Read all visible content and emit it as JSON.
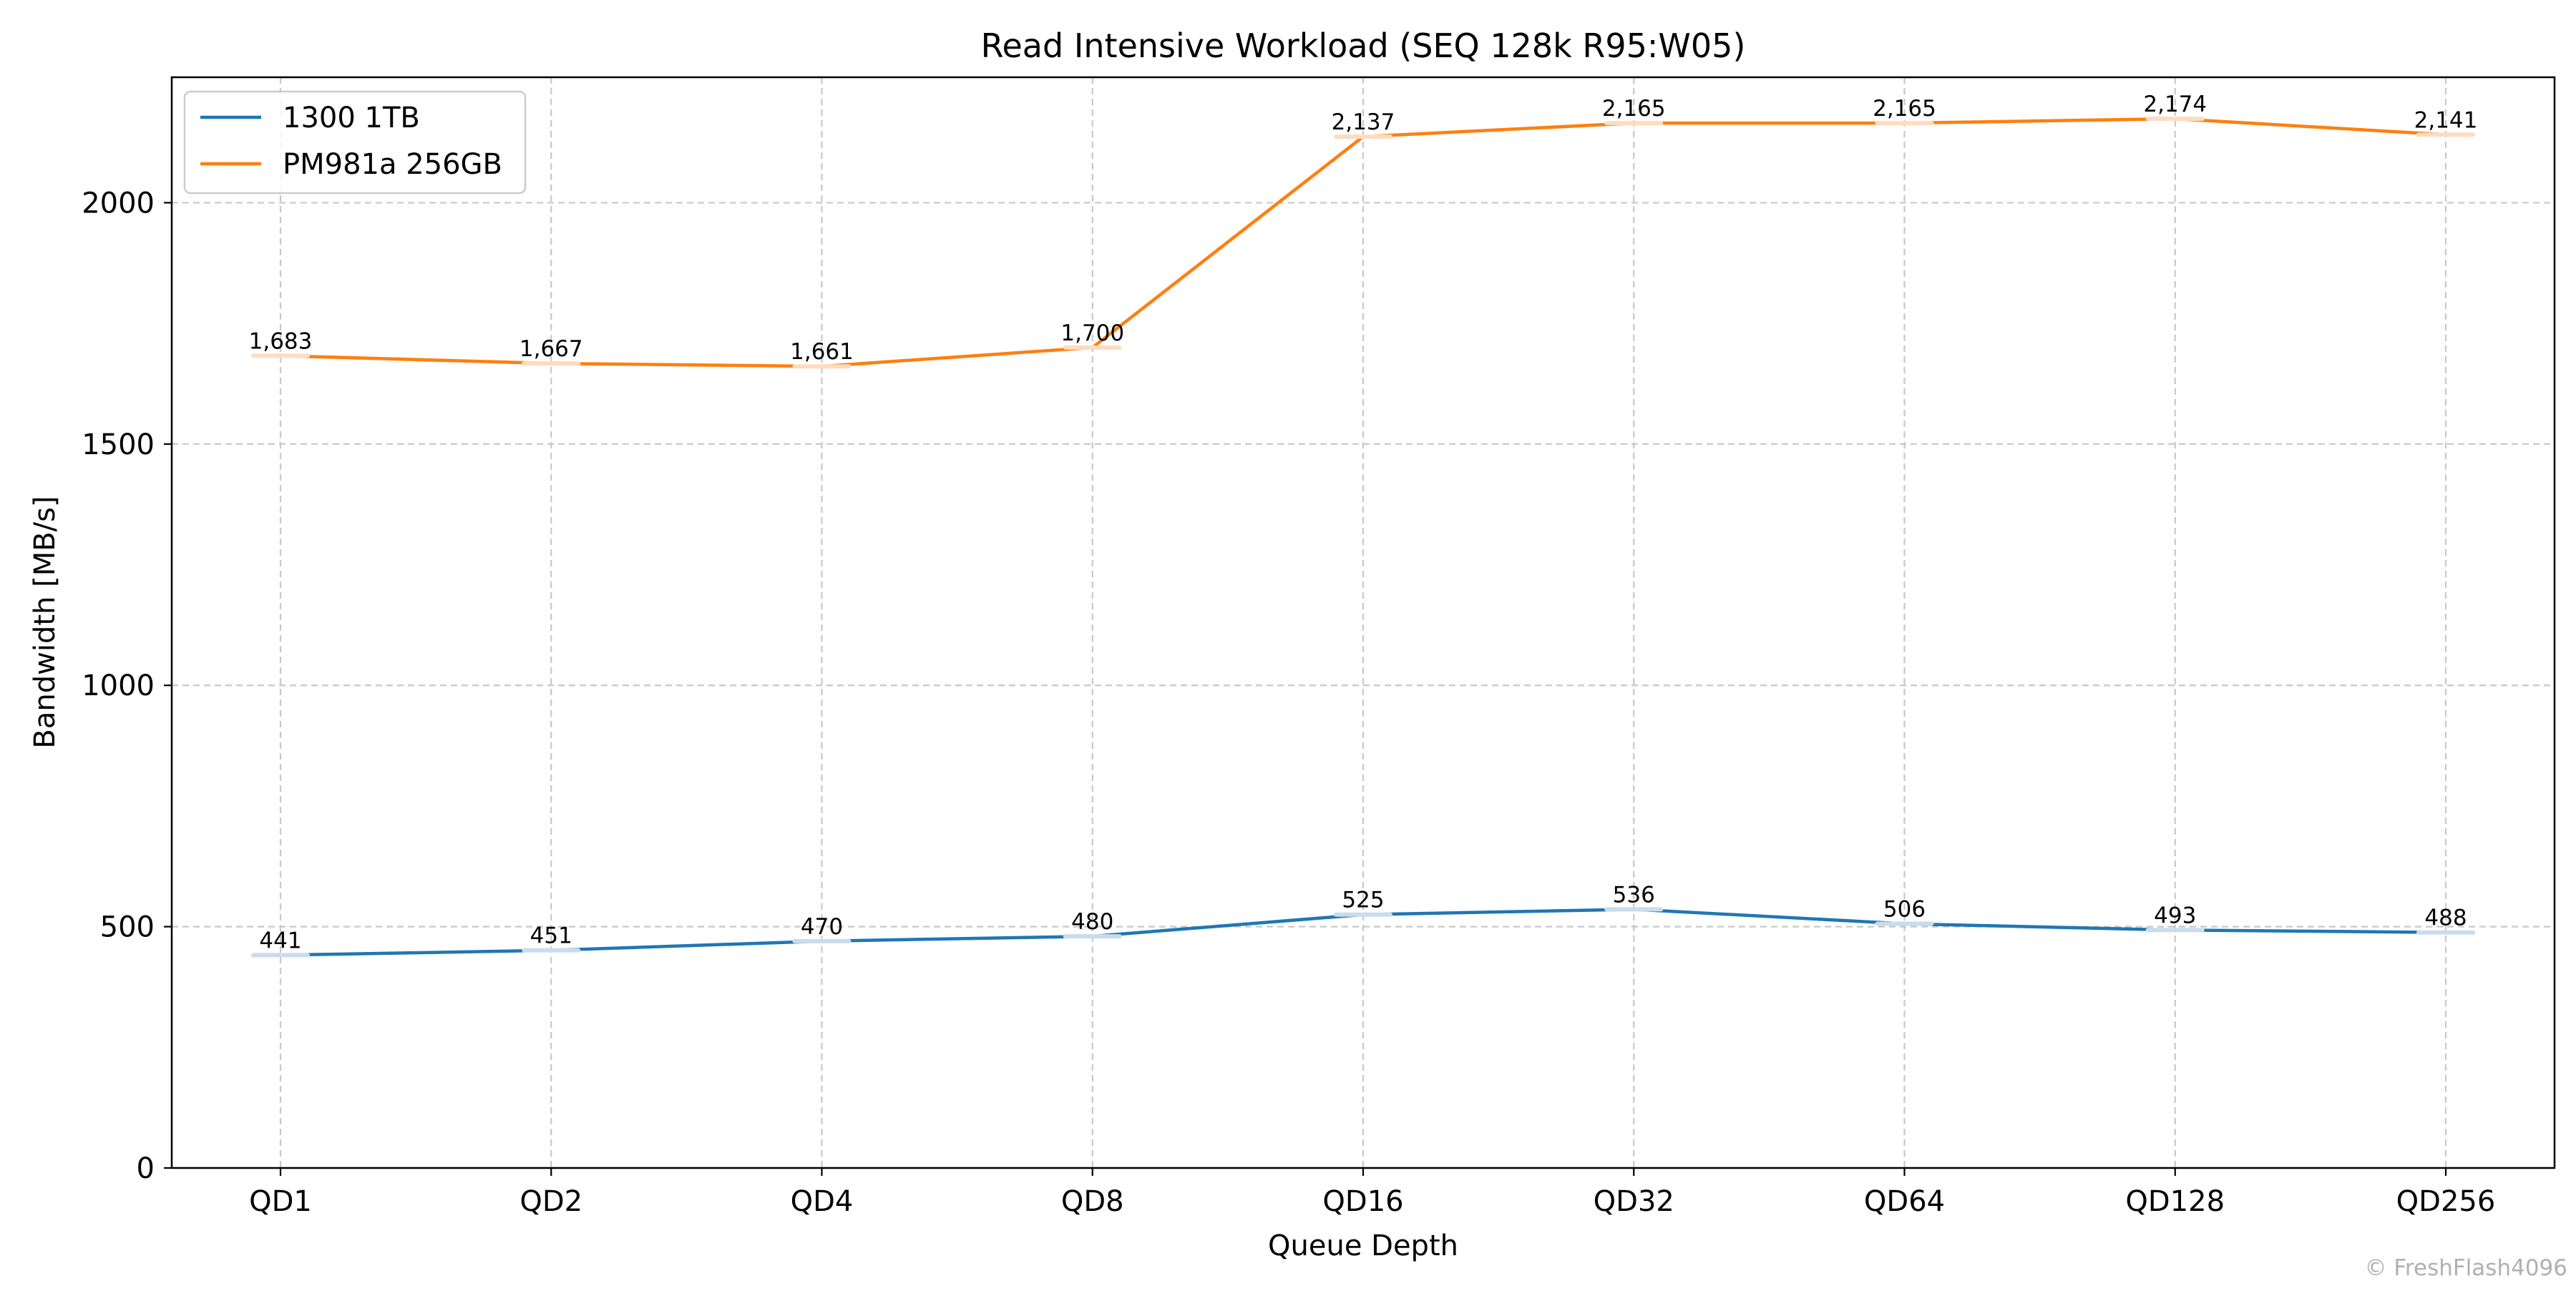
{
  "chart_data": {
    "type": "line",
    "title": "Read Intensive Workload (SEQ 128k R95:W05)",
    "xlabel": "Queue Depth",
    "ylabel": "Bandwidth [MB/s]",
    "categories": [
      "QD1",
      "QD2",
      "QD4",
      "QD8",
      "QD16",
      "QD32",
      "QD64",
      "QD128",
      "QD256"
    ],
    "ylim": [
      0,
      2260
    ],
    "yticks": [
      0,
      500,
      1000,
      1500,
      2000
    ],
    "grid": true,
    "legend_position": "top-left",
    "series": [
      {
        "name": "1300 1TB",
        "color": "#1f77b4",
        "label_bg": "#c9dcec",
        "values": [
          441,
          451,
          470,
          480,
          525,
          536,
          506,
          493,
          488
        ],
        "labels": [
          "441",
          "451",
          "470",
          "480",
          "525",
          "536",
          "506",
          "493",
          "488"
        ]
      },
      {
        "name": "PM981a 256GB",
        "color": "#ff7f0e",
        "label_bg": "#ffdcc0",
        "values": [
          1683,
          1667,
          1661,
          1700,
          2137,
          2165,
          2165,
          2174,
          2141
        ],
        "labels": [
          "1,683",
          "1,667",
          "1,661",
          "1,700",
          "2,137",
          "2,165",
          "2,165",
          "2,174",
          "2,141"
        ]
      }
    ],
    "watermark": "© FreshFlash4096"
  }
}
